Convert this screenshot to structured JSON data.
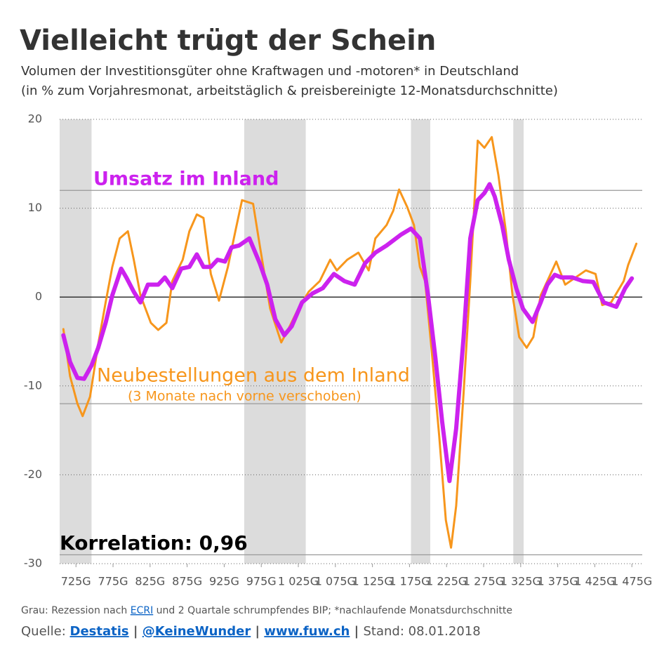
{
  "chart_data": {
    "type": "line",
    "title": "Vielleicht trügt der Schein",
    "subtitle": [
      "Volumen der Investitionsgüter ohne Kraftwagen und -motoren* in Deutschland",
      "(in % zum Vorjahresmonat, arbeitstäglich & preisbereinigte 12-Monatsdurchschnitte)"
    ],
    "xlim": [
      703,
      1489
    ],
    "xticks": [
      {
        "value": 725,
        "label": "725G"
      },
      {
        "value": 775,
        "label": "775G"
      },
      {
        "value": 825,
        "label": "825G"
      },
      {
        "value": 875,
        "label": "875G"
      },
      {
        "value": 925,
        "label": "925G"
      },
      {
        "value": 975,
        "label": "975G"
      },
      {
        "value": 1025,
        "label": "1 025G"
      },
      {
        "value": 1075,
        "label": "1 075G"
      },
      {
        "value": 1125,
        "label": "1 125G"
      },
      {
        "value": 1175,
        "label": "1 175G"
      },
      {
        "value": 1225,
        "label": "1 225G"
      },
      {
        "value": 1275,
        "label": "1 275G"
      },
      {
        "value": 1325,
        "label": "1 325G"
      },
      {
        "value": 1375,
        "label": "1 375G"
      },
      {
        "value": 1425,
        "label": "1 425G"
      },
      {
        "value": 1475,
        "label": "1 475G"
      }
    ],
    "ylim": [
      -30,
      20
    ],
    "yticks": [
      -30,
      -20,
      -10,
      0,
      10,
      20
    ],
    "grid": true,
    "reference_lines": [
      12,
      -12,
      -29
    ],
    "recessions": [
      [
        703,
        746
      ],
      [
        952,
        1035
      ],
      [
        1177,
        1203
      ],
      [
        1315,
        1329
      ]
    ],
    "recession_color": "#dcdcdc",
    "series": [
      {
        "name": "Neubestellungen aus dem Inland",
        "color": "#f7961c",
        "x": [
          708,
          717,
          727,
          734,
          744,
          755,
          765,
          774,
          784,
          795,
          803,
          812,
          826,
          836,
          847,
          855,
          869,
          878,
          888,
          897,
          907,
          918,
          930,
          940,
          949,
          964,
          973,
          987,
          1002,
          1011,
          1025,
          1039,
          1054,
          1068,
          1077,
          1091,
          1106,
          1120,
          1129,
          1144,
          1153,
          1161,
          1172,
          1181,
          1189,
          1196,
          1205,
          1215,
          1224,
          1231,
          1238,
          1248,
          1257,
          1267,
          1276,
          1286,
          1295,
          1305,
          1314,
          1323,
          1333,
          1342,
          1352,
          1361,
          1373,
          1385,
          1399,
          1413,
          1426,
          1435,
          1447,
          1464,
          1470,
          1481
        ],
        "values": [
          -3.6,
          -8.9,
          -12.0,
          -13.4,
          -11.2,
          -5.3,
          -0.6,
          3.4,
          6.6,
          7.4,
          4.2,
          0.2,
          -2.9,
          -3.7,
          -2.9,
          1.8,
          4.2,
          7.4,
          9.3,
          8.9,
          2.6,
          -0.4,
          3.4,
          7.4,
          10.9,
          10.5,
          5.8,
          -1.3,
          -5.1,
          -3.7,
          -1.3,
          0.6,
          1.8,
          4.2,
          3.0,
          4.2,
          5.0,
          3.0,
          6.6,
          8.1,
          9.7,
          12.1,
          10.1,
          8.1,
          3.4,
          1.8,
          -6.1,
          -15.6,
          -25.1,
          -28.2,
          -23.5,
          -10.8,
          1.8,
          17.6,
          16.8,
          18.0,
          13.7,
          7.4,
          0.2,
          -4.5,
          -5.7,
          -4.5,
          0.2,
          1.8,
          4.0,
          1.4,
          2.2,
          3.0,
          2.6,
          -0.9,
          -0.6,
          1.8,
          3.6,
          6.0
        ]
      },
      {
        "name": "Umsatz im Inland",
        "color": "#cc22ee",
        "x": [
          708,
          717,
          727,
          736,
          746,
          755,
          765,
          774,
          786,
          793,
          803,
          812,
          822,
          836,
          845,
          855,
          867,
          878,
          888,
          897,
          907,
          916,
          926,
          935,
          945,
          959,
          973,
          983,
          994,
          1006,
          1016,
          1030,
          1044,
          1058,
          1073,
          1087,
          1101,
          1115,
          1129,
          1144,
          1163,
          1177,
          1189,
          1200,
          1210,
          1219,
          1229,
          1238,
          1248,
          1257,
          1267,
          1276,
          1283,
          1290,
          1300,
          1309,
          1319,
          1328,
          1341,
          1352,
          1361,
          1371,
          1380,
          1395,
          1409,
          1423,
          1437,
          1454,
          1466,
          1475
        ],
        "values": [
          -4.3,
          -7.3,
          -9.1,
          -9.2,
          -7.7,
          -5.7,
          -2.9,
          0.2,
          3.2,
          2.2,
          0.6,
          -0.6,
          1.4,
          1.4,
          2.2,
          1.0,
          3.2,
          3.4,
          4.8,
          3.4,
          3.4,
          4.2,
          4.0,
          5.6,
          5.8,
          6.6,
          3.8,
          1.4,
          -2.5,
          -4.3,
          -3.3,
          -0.6,
          0.4,
          1.0,
          2.6,
          1.8,
          1.4,
          3.8,
          5.0,
          5.8,
          7.0,
          7.7,
          6.6,
          0.2,
          -6.9,
          -14.0,
          -20.7,
          -14.8,
          -4.5,
          6.6,
          10.9,
          11.7,
          12.7,
          11.3,
          8.1,
          4.2,
          1.0,
          -1.3,
          -2.8,
          -0.6,
          1.4,
          2.5,
          2.2,
          2.2,
          1.8,
          1.7,
          -0.6,
          -1.1,
          1.0,
          2.1
        ]
      }
    ],
    "annotations": [
      "(3 Monate nach vorne verschoben)",
      "Korrelation: 0,96"
    ],
    "footer": {
      "note": [
        "Grau: Rezession nach ",
        "ECRI",
        " und 2 Quartale schrumpfendes BIP; *nachlaufende Monatsdurchschnitte"
      ],
      "source": [
        "Quelle: ",
        "Destatis",
        " | ",
        "@KeineWunder",
        " | ",
        "www.fuw.ch",
        " | ",
        "Stand: 08.01.2018"
      ]
    }
  }
}
